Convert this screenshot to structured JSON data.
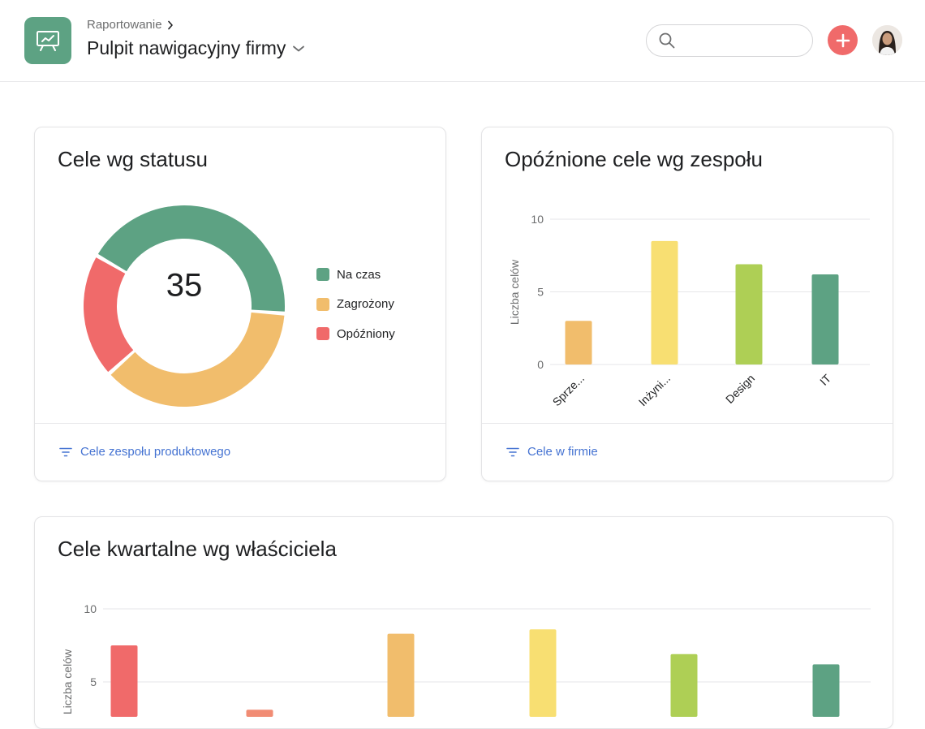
{
  "header": {
    "breadcrumb": "Raportowanie",
    "title": "Pulpit nawigacyjny firmy",
    "search_value": "",
    "icons": {
      "app": "presentation-chart-icon",
      "search": "search-icon",
      "add": "plus-icon",
      "chevron": "chevron-down-icon",
      "breadcrumb_chevron": "chevron-right-icon"
    }
  },
  "colors": {
    "green": "#5da283",
    "yellow": "#f1bd6c",
    "light_yellow": "#f8df72",
    "lime": "#aecf55",
    "red": "#f06a6a",
    "salmon": "#f18c74",
    "accent_link": "#4573d2"
  },
  "cards": {
    "status": {
      "title": "Cele wg statusu",
      "total": "35",
      "legend": [
        {
          "label": "Na czas",
          "color": "#5da283"
        },
        {
          "label": "Zagrożony",
          "color": "#f1bd6c"
        },
        {
          "label": "Opóźniony",
          "color": "#f06a6a"
        }
      ],
      "footer_link": "Cele zespołu produktowego",
      "footer_icon": "filter-icon"
    },
    "team": {
      "title": "Opóźnione cele wg zespołu",
      "footer_link": "Cele w firmie",
      "footer_icon": "filter-icon"
    },
    "owner": {
      "title": "Cele kwartalne wg właściciela"
    }
  },
  "chart_data": [
    {
      "type": "pie",
      "variant": "donut",
      "categories": [
        "Na czas",
        "Zagrożony",
        "Opóźniony"
      ],
      "values": [
        15,
        13,
        7
      ],
      "colors": [
        "#5da283",
        "#f1bd6c",
        "#f06a6a"
      ],
      "center_label": "35",
      "legend_position": "right"
    },
    {
      "type": "bar",
      "categories": [
        "Sprze...",
        "Inżyni...",
        "Design",
        "IT"
      ],
      "values": [
        3,
        8.5,
        6.9,
        6.2
      ],
      "colors": [
        "#f1bd6c",
        "#f8df72",
        "#aecf55",
        "#5da283"
      ],
      "ylabel": "Liczba celów",
      "ylim": [
        0,
        10
      ],
      "yticks": [
        0,
        5,
        10
      ],
      "grid": true
    },
    {
      "type": "bar",
      "values": [
        7.5,
        3.1,
        8.3,
        8.6,
        6.9,
        6.2
      ],
      "colors": [
        "#f06a6a",
        "#f18c74",
        "#f1bd6c",
        "#f8df72",
        "#aecf55",
        "#5da283"
      ],
      "ylabel": "Liczba celów",
      "ylim": [
        0,
        10
      ],
      "yticks": [
        5,
        10
      ],
      "grid": true
    }
  ]
}
